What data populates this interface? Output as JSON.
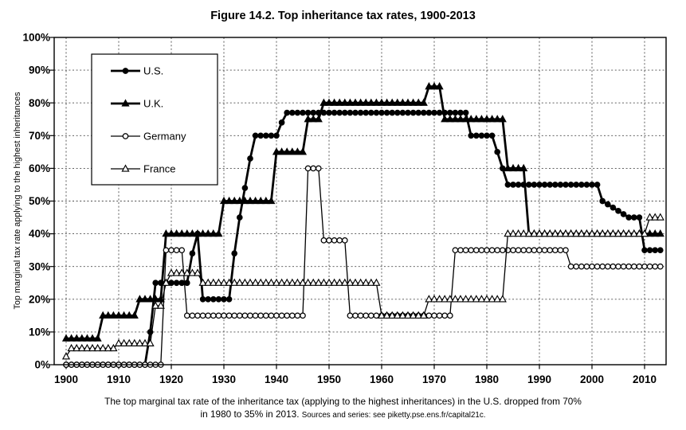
{
  "title": "Figure 14.2. Top inheritance tax rates, 1900-2013",
  "caption": {
    "line1": "The top marginal tax rate of the inheritance tax (applying to the highest inheritances) in the U.S. dropped from 70%",
    "line2": "in 1980 to 35% in 2013.",
    "source_note": "Sources and series: see piketty.pse.ens.fr/capital21c."
  },
  "chart_data": {
    "type": "line",
    "title": "Figure 14.2. Top inheritance tax rates, 1900-2013",
    "xlabel": "",
    "ylabel": "Top marginal tax rate applying to the highest inheritances",
    "x_range": [
      1900,
      2013
    ],
    "ylim": [
      0,
      100
    ],
    "x_ticks": [
      1900,
      1910,
      1920,
      1930,
      1940,
      1950,
      1960,
      1970,
      1980,
      1990,
      2000,
      2010
    ],
    "y_ticks": [
      "0%",
      "10%",
      "20%",
      "30%",
      "40%",
      "50%",
      "60%",
      "70%",
      "80%",
      "90%",
      "100%"
    ],
    "grid": "dashed-both-axes",
    "legend_position": "top-left-inside",
    "line_color": "#000000",
    "background": "#ffffff",
    "segments_format": "[from_year, to_year, top_rate_percent]",
    "series": [
      {
        "name": "U.S.",
        "marker": "filled-circle",
        "line_width": 2.8,
        "segments": [
          [
            1900,
            1915,
            0
          ],
          [
            1916,
            1916,
            10
          ],
          [
            1917,
            1923,
            25
          ],
          [
            1924,
            1924,
            34
          ],
          [
            1925,
            1925,
            40
          ],
          [
            1926,
            1931,
            20
          ],
          [
            1932,
            1932,
            34
          ],
          [
            1933,
            1933,
            45
          ],
          [
            1934,
            1934,
            54
          ],
          [
            1935,
            1935,
            63
          ],
          [
            1936,
            1940,
            70
          ],
          [
            1941,
            1941,
            74
          ],
          [
            1942,
            1976,
            77
          ],
          [
            1977,
            1981,
            70
          ],
          [
            1982,
            1982,
            65
          ],
          [
            1983,
            1983,
            60
          ],
          [
            1984,
            2001,
            55
          ],
          [
            2002,
            2002,
            50
          ],
          [
            2003,
            2003,
            49
          ],
          [
            2004,
            2004,
            48
          ],
          [
            2005,
            2005,
            47
          ],
          [
            2006,
            2006,
            46
          ],
          [
            2007,
            2009,
            45
          ],
          [
            2010,
            2013,
            35
          ]
        ]
      },
      {
        "name": "U.K.",
        "marker": "filled-triangle",
        "line_width": 2.8,
        "segments": [
          [
            1900,
            1906,
            8
          ],
          [
            1907,
            1913,
            15
          ],
          [
            1914,
            1918,
            20
          ],
          [
            1919,
            1929,
            40
          ],
          [
            1930,
            1939,
            50
          ],
          [
            1940,
            1945,
            65
          ],
          [
            1946,
            1948,
            75
          ],
          [
            1949,
            1968,
            80
          ],
          [
            1969,
            1971,
            85
          ],
          [
            1972,
            1983,
            75
          ],
          [
            1984,
            1987,
            60
          ],
          [
            1988,
            2013,
            40
          ]
        ]
      },
      {
        "name": "Germany",
        "marker": "open-circle",
        "line_width": 1.3,
        "segments": [
          [
            1900,
            1918,
            0
          ],
          [
            1919,
            1922,
            35
          ],
          [
            1923,
            1945,
            15
          ],
          [
            1946,
            1948,
            60
          ],
          [
            1949,
            1953,
            38
          ],
          [
            1954,
            1973,
            15
          ],
          [
            1974,
            1995,
            35
          ],
          [
            1996,
            2013,
            30
          ]
        ]
      },
      {
        "name": "France",
        "marker": "open-triangle",
        "line_width": 1.3,
        "segments": [
          [
            1900,
            1900,
            2.5
          ],
          [
            1901,
            1909,
            5
          ],
          [
            1910,
            1916,
            6.5
          ],
          [
            1917,
            1918,
            18
          ],
          [
            1919,
            1919,
            25
          ],
          [
            1920,
            1925,
            28
          ],
          [
            1926,
            1959,
            25
          ],
          [
            1960,
            1968,
            15
          ],
          [
            1969,
            1983,
            20
          ],
          [
            1984,
            2010,
            40
          ],
          [
            2011,
            2013,
            45
          ]
        ]
      }
    ]
  }
}
